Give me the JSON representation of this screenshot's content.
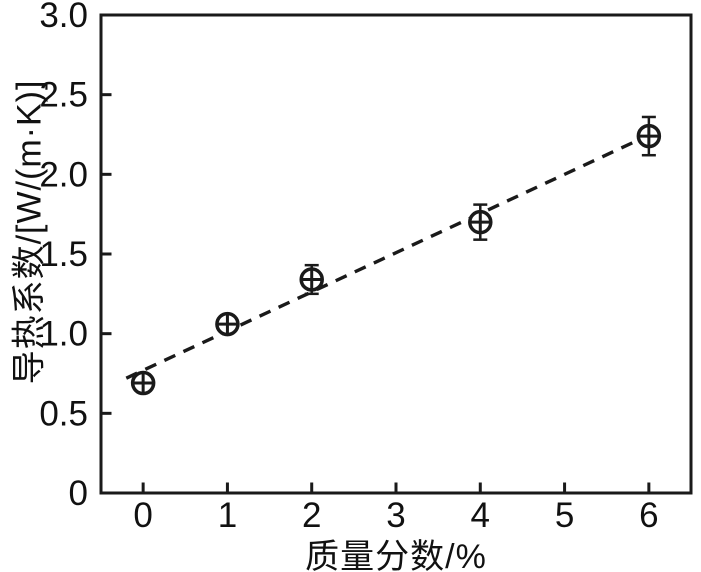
{
  "chart_data": {
    "type": "scatter",
    "title": "",
    "xlabel": "质量分数/%",
    "ylabel": "导热系数/[W/(m·K)]",
    "x": [
      0,
      1,
      2,
      4,
      6
    ],
    "y": [
      0.69,
      1.06,
      1.34,
      1.7,
      2.24
    ],
    "y_err": [
      0.05,
      0.05,
      0.09,
      0.11,
      0.12
    ],
    "fit_line": {
      "style": "dashed",
      "slope": 0.246,
      "intercept": 0.77,
      "x_start": -0.2,
      "x_end": 6.0
    },
    "xlim": [
      -0.5,
      6.5
    ],
    "ylim": [
      0,
      3.0
    ],
    "x_ticks": {
      "values": [
        0,
        1,
        2,
        3,
        4,
        5,
        6
      ],
      "labels": [
        "0",
        "1",
        "2",
        "3",
        "4",
        "5",
        "6"
      ]
    },
    "y_ticks": {
      "values": [
        0,
        0.5,
        1.0,
        1.5,
        2.0,
        2.5,
        3.0
      ],
      "labels": [
        "0",
        "0.5",
        "1.0",
        "1.5",
        "2.0",
        "2.5",
        "3.0"
      ]
    },
    "marker": "circle-plus",
    "grid": false,
    "legend": "none",
    "colors": {
      "foreground": "#1a1a1a",
      "background": "#ffffff",
      "marker_fill": "#ffffff"
    }
  }
}
